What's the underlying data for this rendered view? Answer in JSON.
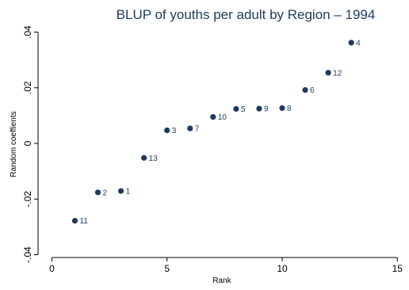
{
  "chart_data": {
    "type": "scatter",
    "title": "BLUP of youths per adult by Region  – 1994",
    "xlabel": "Rank",
    "ylabel": "Random coeffients",
    "xlim": [
      -0.6,
      15.3
    ],
    "ylim": [
      -0.041,
      0.041
    ],
    "x_ticks": [
      0,
      5,
      10,
      15
    ],
    "x_tick_labels": [
      "0",
      "5",
      "10",
      "15"
    ],
    "y_ticks": [
      -0.04,
      -0.02,
      0,
      0.02,
      0.04
    ],
    "y_tick_labels": [
      "-.04",
      "-.02",
      "0",
      ".02",
      ".04"
    ],
    "grid": false,
    "legend": "none",
    "marker_color": "#1c3a5e",
    "points": [
      {
        "x": 1,
        "y": -0.0278,
        "label": "11"
      },
      {
        "x": 2,
        "y": -0.0176,
        "label": "2"
      },
      {
        "x": 3,
        "y": -0.0171,
        "label": "1"
      },
      {
        "x": 4,
        "y": -0.0052,
        "label": "13"
      },
      {
        "x": 5,
        "y": 0.0047,
        "label": "3"
      },
      {
        "x": 6,
        "y": 0.0054,
        "label": "7"
      },
      {
        "x": 7,
        "y": 0.0095,
        "label": "10"
      },
      {
        "x": 8,
        "y": 0.0124,
        "label": "5"
      },
      {
        "x": 9,
        "y": 0.0125,
        "label": "9"
      },
      {
        "x": 10,
        "y": 0.0127,
        "label": "8"
      },
      {
        "x": 11,
        "y": 0.0192,
        "label": "6"
      },
      {
        "x": 12,
        "y": 0.0254,
        "label": "12"
      },
      {
        "x": 13,
        "y": 0.0362,
        "label": "4"
      }
    ]
  }
}
